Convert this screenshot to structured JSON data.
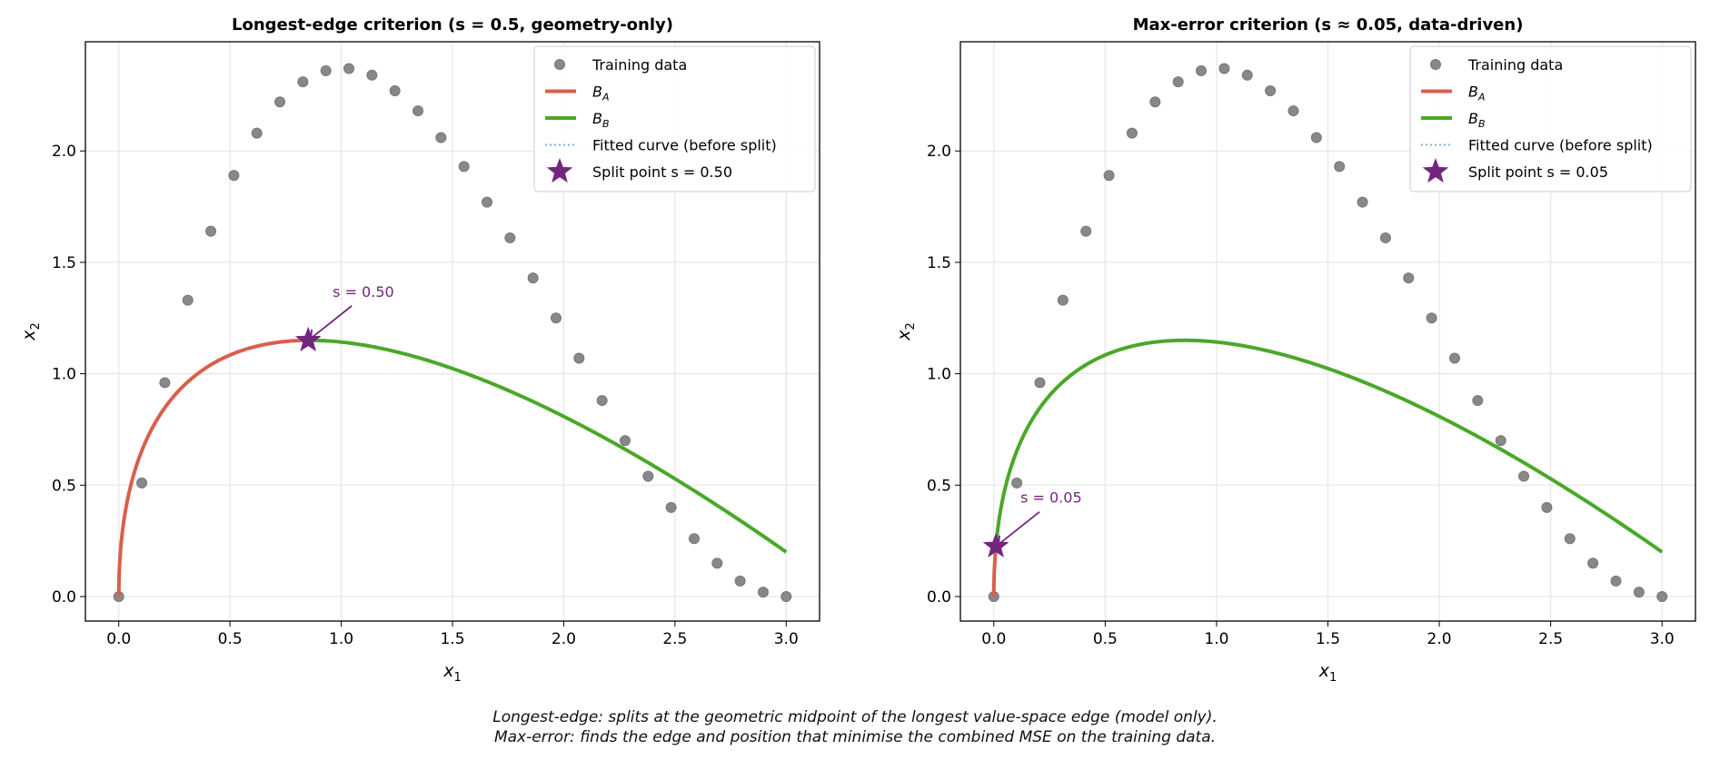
{
  "chart_data": [
    {
      "type": "line",
      "title": "Longest-edge criterion (s = 0.5, geometry-only)",
      "xlabel": "x1",
      "ylabel": "x2",
      "xlim": [
        -0.15,
        3.15
      ],
      "ylim": [
        -0.11,
        2.49
      ],
      "xticks": [
        "0.0",
        "0.5",
        "1.0",
        "1.5",
        "2.0",
        "2.5",
        "3.0"
      ],
      "yticks": [
        "0.0",
        "0.5",
        "1.0",
        "1.5",
        "2.0"
      ],
      "split_t": 0.5,
      "annotation": "s = 0.50",
      "legend_split": "Split point s = 0.50",
      "grid": true,
      "legend": "top-right"
    },
    {
      "type": "line",
      "title": "Max-error criterion (s ≈ 0.05, data-driven)",
      "xlabel": "x1",
      "ylabel": "x2",
      "xlim": [
        -0.15,
        3.15
      ],
      "ylim": [
        -0.11,
        2.49
      ],
      "xticks": [
        "0.0",
        "0.5",
        "1.0",
        "1.5",
        "2.0",
        "2.5",
        "3.0"
      ],
      "yticks": [
        "0.0",
        "0.5",
        "1.0",
        "1.5",
        "2.0"
      ],
      "split_t": 0.05,
      "annotation": "s = 0.05",
      "legend_split": "Split point s = 0.05",
      "grid": true,
      "legend": "top-right"
    }
  ],
  "training_data": {
    "y": [
      0,
      0.51,
      0.96,
      1.33,
      1.64,
      1.89,
      2.08,
      2.22,
      2.31,
      2.36,
      2.37,
      2.34,
      2.27,
      2.18,
      2.06,
      1.93,
      1.77,
      1.61,
      1.43,
      1.25,
      1.07,
      0.88,
      0.7,
      0.54,
      0.4,
      0.26,
      0.15,
      0.07,
      0.02,
      0.0
    ],
    "x_start": 0,
    "x_end": 3
  },
  "fitted_curve_control_points": [
    [
      0,
      0
    ],
    [
      0,
      1.59
    ],
    [
      1.27,
      1.41
    ],
    [
      3,
      0.2
    ]
  ],
  "legend": {
    "training": "Training data",
    "ba": "B",
    "ba_sub": "A",
    "bb": "B",
    "bb_sub": "B",
    "fitted": "Fitted curve (before split)"
  },
  "colors": {
    "ba": "#d95f4b",
    "bb": "#4aa829",
    "star": "#74267f",
    "points": "#888888",
    "fitted": "#7fb0dd"
  },
  "caption": [
    "Longest-edge: splits at the geometric midpoint of the longest value-space edge (model only).",
    "Max-error: finds the edge and position that minimise the combined MSE on the training data."
  ]
}
